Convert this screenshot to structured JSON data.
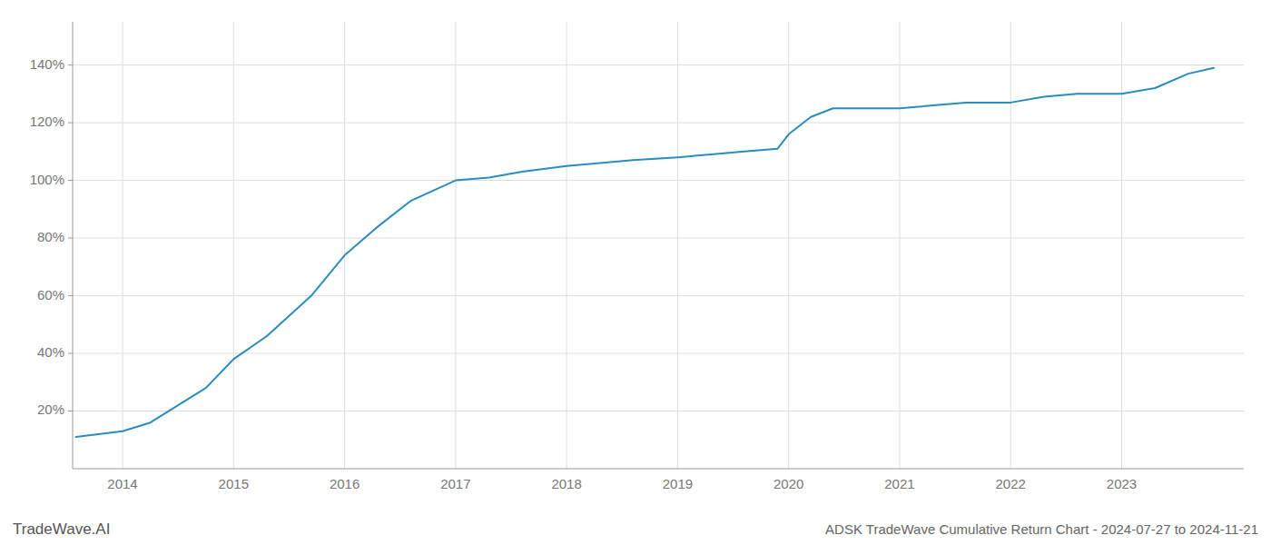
{
  "chart_data": {
    "type": "line",
    "title": "ADSK TradeWave Cumulative Return Chart - 2024-07-27 to 2024-11-21",
    "annotations": [
      "TradeWave.AI"
    ],
    "x": [
      2013.58,
      2014.0,
      2014.25,
      2014.75,
      2015.0,
      2015.3,
      2015.7,
      2016.0,
      2016.3,
      2016.6,
      2017.0,
      2017.3,
      2017.6,
      2018.0,
      2018.3,
      2018.6,
      2019.0,
      2019.3,
      2019.6,
      2019.9,
      2020.0,
      2020.2,
      2020.4,
      2020.6,
      2021.0,
      2021.3,
      2021.6,
      2022.0,
      2022.3,
      2022.6,
      2023.0,
      2023.3,
      2023.6,
      2023.83
    ],
    "values": [
      11,
      13,
      16,
      28,
      38,
      46,
      60,
      74,
      84,
      93,
      100,
      101,
      103,
      105,
      106,
      107,
      108,
      109,
      110,
      111,
      116,
      122,
      125,
      125,
      125,
      126,
      127,
      127,
      129,
      130,
      130,
      132,
      137,
      139
    ],
    "color": "#2b8cbe",
    "xlim": [
      2013.55,
      2024.1
    ],
    "xticks": [
      2014,
      2015,
      2016,
      2017,
      2018,
      2019,
      2020,
      2021,
      2022,
      2023
    ],
    "ylim": [
      0,
      155
    ],
    "yticks": [
      {
        "value": 20,
        "label": "20%"
      },
      {
        "value": 40,
        "label": "40%"
      },
      {
        "value": 60,
        "label": "60%"
      },
      {
        "value": 80,
        "label": "80%"
      },
      {
        "value": 100,
        "label": "100%"
      },
      {
        "value": 120,
        "label": "120%"
      },
      {
        "value": 140,
        "label": "140%"
      }
    ],
    "grid": true
  }
}
